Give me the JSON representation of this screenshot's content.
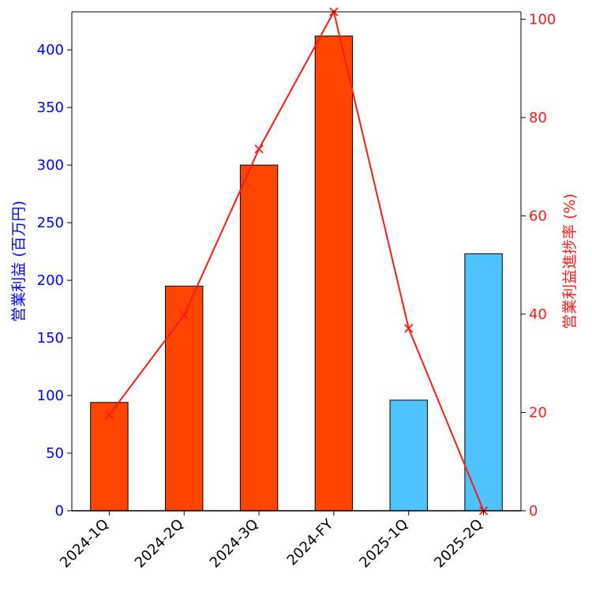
{
  "chart_data": {
    "type": "bar",
    "categories": [
      "2024-1Q",
      "2024-2Q",
      "2024-3Q",
      "2024-FY",
      "2025-1Q",
      "2025-2Q"
    ],
    "series": [
      {
        "name": "営業利益 (百万円)",
        "type": "bar",
        "axis": "left",
        "values": [
          94,
          195,
          300,
          412,
          96,
          223
        ],
        "colors": [
          "#ff4500",
          "#ff4500",
          "#ff4500",
          "#ff4500",
          "#4fc3ff",
          "#4fc3ff"
        ]
      },
      {
        "name": "営業利益進捗率 (%)",
        "type": "line",
        "axis": "right",
        "marker": "x",
        "color": "#ff1a1a",
        "values": [
          19.5,
          39.8,
          73.6,
          101.5,
          37.1,
          0
        ]
      }
    ],
    "ylabel": "営業利益 (百万円)",
    "ylabel_right": "営業利益進捗率 (%)",
    "ylim": [
      0,
      433
    ],
    "ylim_right": [
      0,
      101.5
    ],
    "yticks": [
      0,
      50,
      100,
      150,
      200,
      250,
      300,
      350,
      400
    ],
    "yticks_right": [
      0,
      20,
      40,
      60,
      80,
      100
    ],
    "left_axis_color": "#0000ff",
    "right_axis_color": "#ff1a1a",
    "grid": false
  }
}
